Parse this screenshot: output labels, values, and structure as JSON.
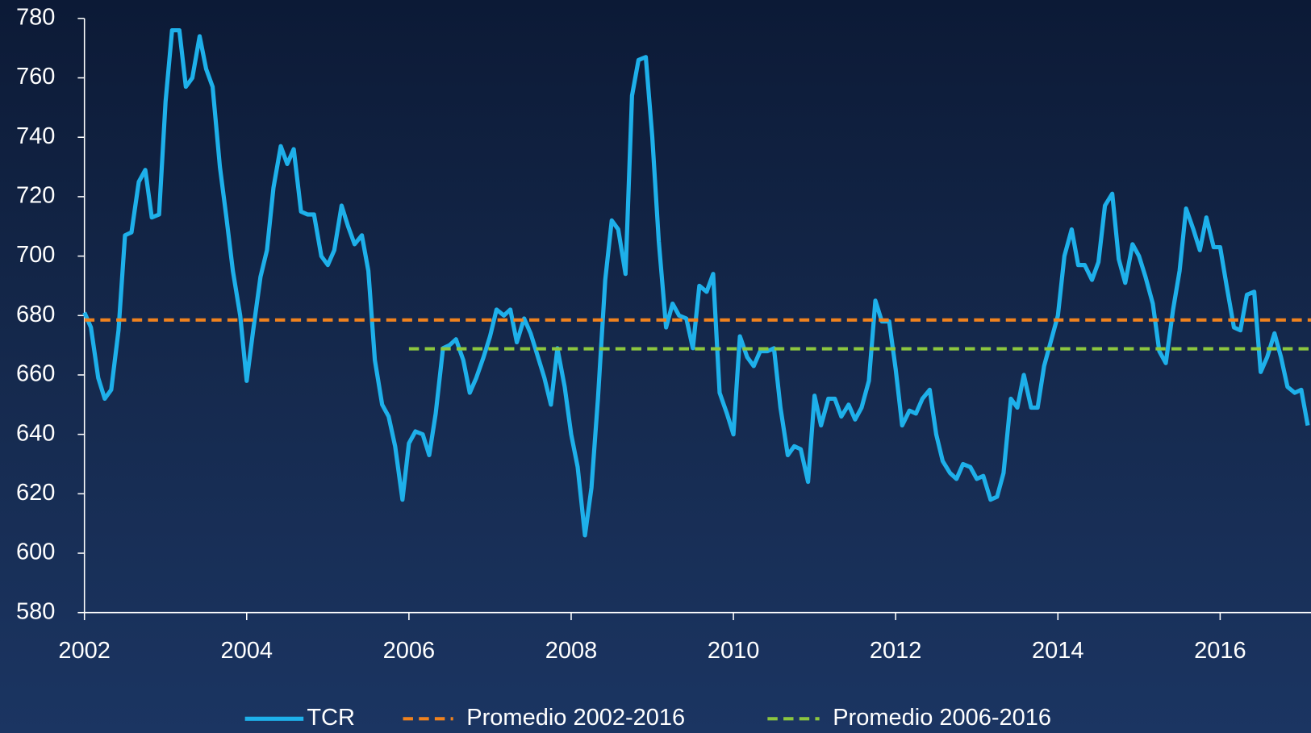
{
  "chart_data": {
    "type": "line",
    "xlim": [
      2002,
      2017.12
    ],
    "xticks": [
      2002,
      2004,
      2006,
      2008,
      2010,
      2012,
      2014,
      2016
    ],
    "ylim": [
      580,
      780
    ],
    "yticks": [
      580,
      600,
      620,
      640,
      660,
      680,
      700,
      720,
      740,
      760,
      780
    ],
    "legend": "bottom",
    "series": [
      {
        "name": "TCR",
        "color": "#1eb0ea",
        "dashed": false,
        "x": [
          2002,
          2002.08,
          2002.17,
          2002.25,
          2002.33,
          2002.42,
          2002.5,
          2002.58,
          2002.67,
          2002.75,
          2002.83,
          2002.92,
          2003,
          2003.08,
          2003.17,
          2003.25,
          2003.33,
          2003.42,
          2003.5,
          2003.58,
          2003.67,
          2003.75,
          2003.83,
          2003.92,
          2004,
          2004.08,
          2004.17,
          2004.25,
          2004.33,
          2004.42,
          2004.5,
          2004.58,
          2004.67,
          2004.75,
          2004.83,
          2004.92,
          2005,
          2005.08,
          2005.17,
          2005.25,
          2005.33,
          2005.42,
          2005.5,
          2005.58,
          2005.67,
          2005.75,
          2005.83,
          2005.92,
          2006,
          2006.08,
          2006.17,
          2006.25,
          2006.33,
          2006.42,
          2006.5,
          2006.58,
          2006.67,
          2006.75,
          2006.83,
          2006.92,
          2007,
          2007.08,
          2007.17,
          2007.25,
          2007.33,
          2007.42,
          2007.5,
          2007.58,
          2007.67,
          2007.75,
          2007.83,
          2007.92,
          2008,
          2008.08,
          2008.17,
          2008.25,
          2008.33,
          2008.42,
          2008.5,
          2008.58,
          2008.67,
          2008.75,
          2008.83,
          2008.92,
          2009,
          2009.08,
          2009.17,
          2009.25,
          2009.33,
          2009.42,
          2009.5,
          2009.58,
          2009.67,
          2009.75,
          2009.83,
          2009.92,
          2010,
          2010.08,
          2010.17,
          2010.25,
          2010.33,
          2010.42,
          2010.5,
          2010.58,
          2010.67,
          2010.75,
          2010.83,
          2010.92,
          2011,
          2011.08,
          2011.17,
          2011.25,
          2011.33,
          2011.42,
          2011.5,
          2011.58,
          2011.67,
          2011.75,
          2011.83,
          2011.92,
          2012,
          2012.08,
          2012.17,
          2012.25,
          2012.33,
          2012.42,
          2012.5,
          2012.58,
          2012.67,
          2012.75,
          2012.83,
          2012.92,
          2013,
          2013.08,
          2013.17,
          2013.25,
          2013.33,
          2013.42,
          2013.5,
          2013.58,
          2013.67,
          2013.75,
          2013.83,
          2013.92,
          2014,
          2014.08,
          2014.17,
          2014.25,
          2014.33,
          2014.42,
          2014.5,
          2014.58,
          2014.67,
          2014.75,
          2014.83,
          2014.92,
          2015,
          2015.08,
          2015.17,
          2015.25,
          2015.33,
          2015.42,
          2015.5,
          2015.58,
          2015.67,
          2015.75,
          2015.83,
          2015.92,
          2016,
          2016.08,
          2016.17,
          2016.25,
          2016.33,
          2016.42,
          2016.5,
          2016.58,
          2016.67,
          2016.75,
          2016.83,
          2016.92,
          2017,
          2017.08
        ],
        "values": [
          681,
          676,
          659,
          652,
          655,
          675,
          707,
          708,
          725,
          729,
          713,
          714,
          752,
          776,
          776,
          757,
          760,
          774,
          763,
          757,
          730,
          713,
          695,
          680,
          658,
          675,
          693,
          702,
          723,
          737,
          731,
          736,
          715,
          714,
          714,
          700,
          697,
          702,
          717,
          710,
          704,
          707,
          695,
          665,
          650,
          646,
          636,
          618,
          637,
          641,
          640,
          633,
          647,
          669,
          670,
          672,
          665,
          654,
          659,
          666,
          673,
          682,
          680,
          682,
          671,
          679,
          674,
          667,
          659,
          650,
          669,
          656,
          640,
          629,
          606,
          622,
          652,
          692,
          712,
          709,
          694,
          754,
          766,
          767,
          740,
          705,
          676,
          684,
          680,
          679,
          669,
          690,
          688,
          694,
          654,
          647,
          640,
          673,
          666,
          663,
          668,
          668,
          669,
          649,
          633,
          636,
          635,
          624,
          653,
          643,
          652,
          652,
          646,
          650,
          645,
          649,
          658,
          685,
          678,
          678,
          662,
          643,
          648,
          647,
          652,
          655,
          640,
          631,
          627,
          625,
          630,
          629,
          625,
          626,
          618,
          619,
          627,
          652,
          649,
          660,
          649,
          649,
          663,
          672,
          680,
          700,
          709,
          697,
          697,
          692,
          698,
          717,
          721,
          699,
          691,
          704,
          700,
          693,
          684,
          668,
          664,
          682,
          695,
          716,
          709,
          702,
          713,
          703,
          703,
          690,
          676,
          675,
          687,
          688,
          661,
          666,
          674,
          666,
          656,
          654,
          655,
          643
        ]
      },
      {
        "name": "Promedio 2002-2016",
        "color": "#f0821e",
        "dashed": true,
        "x": [
          2002,
          2017.12
        ],
        "values": [
          678.5,
          678.5
        ]
      },
      {
        "name": "Promedio 2006-2016",
        "color": "#8cc63f",
        "dashed": true,
        "x": [
          2006,
          2017.12
        ],
        "values": [
          668.8,
          668.8
        ]
      }
    ]
  }
}
